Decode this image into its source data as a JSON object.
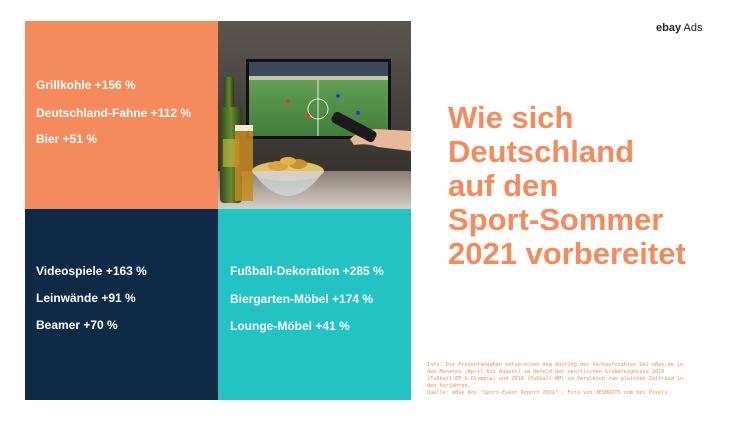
{
  "brand": {
    "logo_text_bold": "ebay",
    "logo_text_regular": " Ads"
  },
  "tiles": {
    "orange": {
      "items": [
        "Grillkohle +156 %",
        "Deutschland-Fahne +112 %",
        "Bier +51 %"
      ]
    },
    "navy": {
      "items": [
        "Videospiele +163 %",
        "Leinwände +91 %",
        "Beamer +70 %"
      ]
    },
    "teal": {
      "items": [
        "Fußball-Dekoration +285 %",
        "Biergarten-Möbel +174 %",
        "Lounge-Möbel +41 %"
      ]
    },
    "photo": {
      "icon": "tv-football-beer-snacks-photo"
    }
  },
  "headline": {
    "lines": [
      "Wie sich",
      "Deutschland",
      "auf den",
      "Sport-Sommer",
      "2021 vorbereitet"
    ]
  },
  "footnote": {
    "lines": [
      "Info: Die Prozentangaben entsprechen dem Anstieg der Verkaufszahlen bei eBay.de in",
      "den Monaten (April bis August) im Umfeld der sportlichen Großereignisse 2016",
      "(Fußball-EM & Olympia) und 2018 (Fußball-WM) im Vergleich zum gleichen Zeitraum in",
      "den Vorjahren.",
      "Quelle: eBay Ads \"Sport-Event Report 2021\" ; Foto von JESHOOTS.com bei Pexels"
    ]
  },
  "colors": {
    "orange": "#f58b5c",
    "navy": "#0e2a46",
    "teal": "#24c3c3"
  }
}
